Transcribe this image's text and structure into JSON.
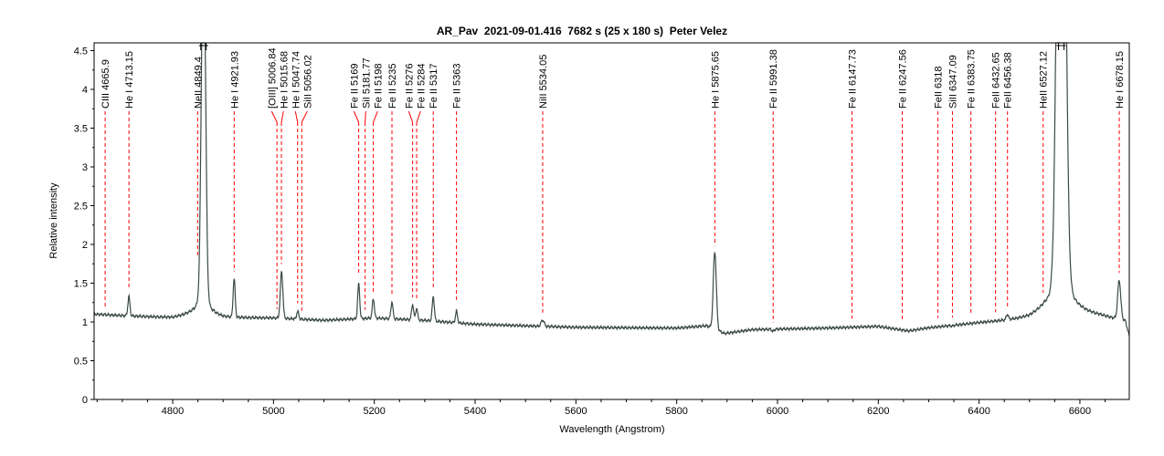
{
  "chart_data": {
    "type": "line",
    "title": "AR_Pav  2021-09-01.416  7682 s (25 x 180 s)  Peter Velez",
    "xlabel": "Wavelength (Angstrom)",
    "ylabel": "Relative intensity",
    "xlim": [
      4644,
      6698
    ],
    "ylim": [
      0,
      4.6
    ],
    "xticks": [
      "4800",
      "5000",
      "5200",
      "5400",
      "5600",
      "5800",
      "6000",
      "6200",
      "6400",
      "6600"
    ],
    "yticks": [
      "0",
      "0.5",
      "1",
      "1.5",
      "2",
      "2.5",
      "3",
      "3.5",
      "4",
      "4.5"
    ],
    "grid": false,
    "series_color": "#3a4a48",
    "marker_color": "#ff0000",
    "continuum": [
      [
        4644,
        1.1
      ],
      [
        4700,
        1.08
      ],
      [
        4800,
        1.05
      ],
      [
        4850,
        1.1
      ],
      [
        4900,
        1.05
      ],
      [
        5000,
        1.05
      ],
      [
        5100,
        1.02
      ],
      [
        5200,
        1.05
      ],
      [
        5300,
        1.02
      ],
      [
        5400,
        0.97
      ],
      [
        5500,
        0.95
      ],
      [
        5600,
        0.93
      ],
      [
        5800,
        0.92
      ],
      [
        5860,
        0.95
      ],
      [
        5895,
        0.85
      ],
      [
        5950,
        0.9
      ],
      [
        6100,
        0.92
      ],
      [
        6200,
        0.94
      ],
      [
        6260,
        0.88
      ],
      [
        6300,
        0.92
      ],
      [
        6400,
        0.98
      ],
      [
        6500,
        1.02
      ],
      [
        6530,
        1.08
      ],
      [
        6640,
        1.05
      ],
      [
        6690,
        1.0
      ],
      [
        6698,
        0.8
      ]
    ],
    "emission": [
      [
        4713,
        1.25,
        2
      ],
      [
        4861,
        6,
        4
      ],
      [
        4921.9,
        1.5,
        2
      ],
      [
        5016,
        1.6,
        2.5
      ],
      [
        5048,
        1.1,
        2
      ],
      [
        5169,
        1.45,
        2
      ],
      [
        5198,
        1.25,
        2
      ],
      [
        5235,
        1.22,
        2
      ],
      [
        5276,
        1.2,
        2
      ],
      [
        5284,
        1.15,
        2
      ],
      [
        5317,
        1.32,
        2
      ],
      [
        5363,
        1.15,
        2
      ],
      [
        5534,
        1.08,
        3
      ],
      [
        5875.6,
        2.0,
        3
      ],
      [
        5991,
        0.97,
        2
      ],
      [
        6148,
        1.0,
        2
      ],
      [
        6318,
        1.0,
        2
      ],
      [
        6347,
        0.99,
        2
      ],
      [
        6456,
        1.07,
        2
      ],
      [
        6563,
        12,
        7
      ],
      [
        6678,
        1.5,
        3
      ]
    ],
    "clipped_peaks": [
      4861,
      6563
    ],
    "line_ids": [
      {
        "label": "CIII 4665.9",
        "x": 4665.9
      },
      {
        "label": "He I 4713.15",
        "x": 4713.15
      },
      {
        "label": "NeII 4849.4",
        "x": 4849.4
      },
      {
        "label": "He I 4921.93",
        "x": 4921.93
      },
      {
        "label": "[OIII] 5006.84",
        "x": 5006.84
      },
      {
        "label": "He I 5015.68",
        "x": 5015.68
      },
      {
        "label": "He I 5047.74",
        "x": 5047.74
      },
      {
        "label": "SiII 5056.02",
        "x": 5056.02
      },
      {
        "label": "Fe II 5169",
        "x": 5169
      },
      {
        "label": "SiI 5181.77",
        "x": 5181.77
      },
      {
        "label": "Fe II 5198",
        "x": 5198
      },
      {
        "label": "Fe II 5235",
        "x": 5235
      },
      {
        "label": "Fe II 5276",
        "x": 5276
      },
      {
        "label": "Fe II 5284",
        "x": 5284
      },
      {
        "label": "Fe II 5317",
        "x": 5317
      },
      {
        "label": "Fe II 5363",
        "x": 5363
      },
      {
        "label": "NiII 5534.05",
        "x": 5534.05
      },
      {
        "label": "He I 5875.65",
        "x": 5875.65
      },
      {
        "label": "Fe II 5991.38",
        "x": 5991.38
      },
      {
        "label": "Fe II 6147.73",
        "x": 6147.73
      },
      {
        "label": "Fe II 6247.56",
        "x": 6247.56
      },
      {
        "label": "FeII 6318",
        "x": 6318
      },
      {
        "label": "SiII 6347.09",
        "x": 6347.09
      },
      {
        "label": "Fe II 6383.75",
        "x": 6383.75
      },
      {
        "label": "FeII 6432.65",
        "x": 6432.65
      },
      {
        "label": "FeII 6456.38",
        "x": 6456.38
      },
      {
        "label": "HeII 6527.12",
        "x": 6527.12
      },
      {
        "label": "He I 6678.15",
        "x": 6678.15
      }
    ]
  }
}
